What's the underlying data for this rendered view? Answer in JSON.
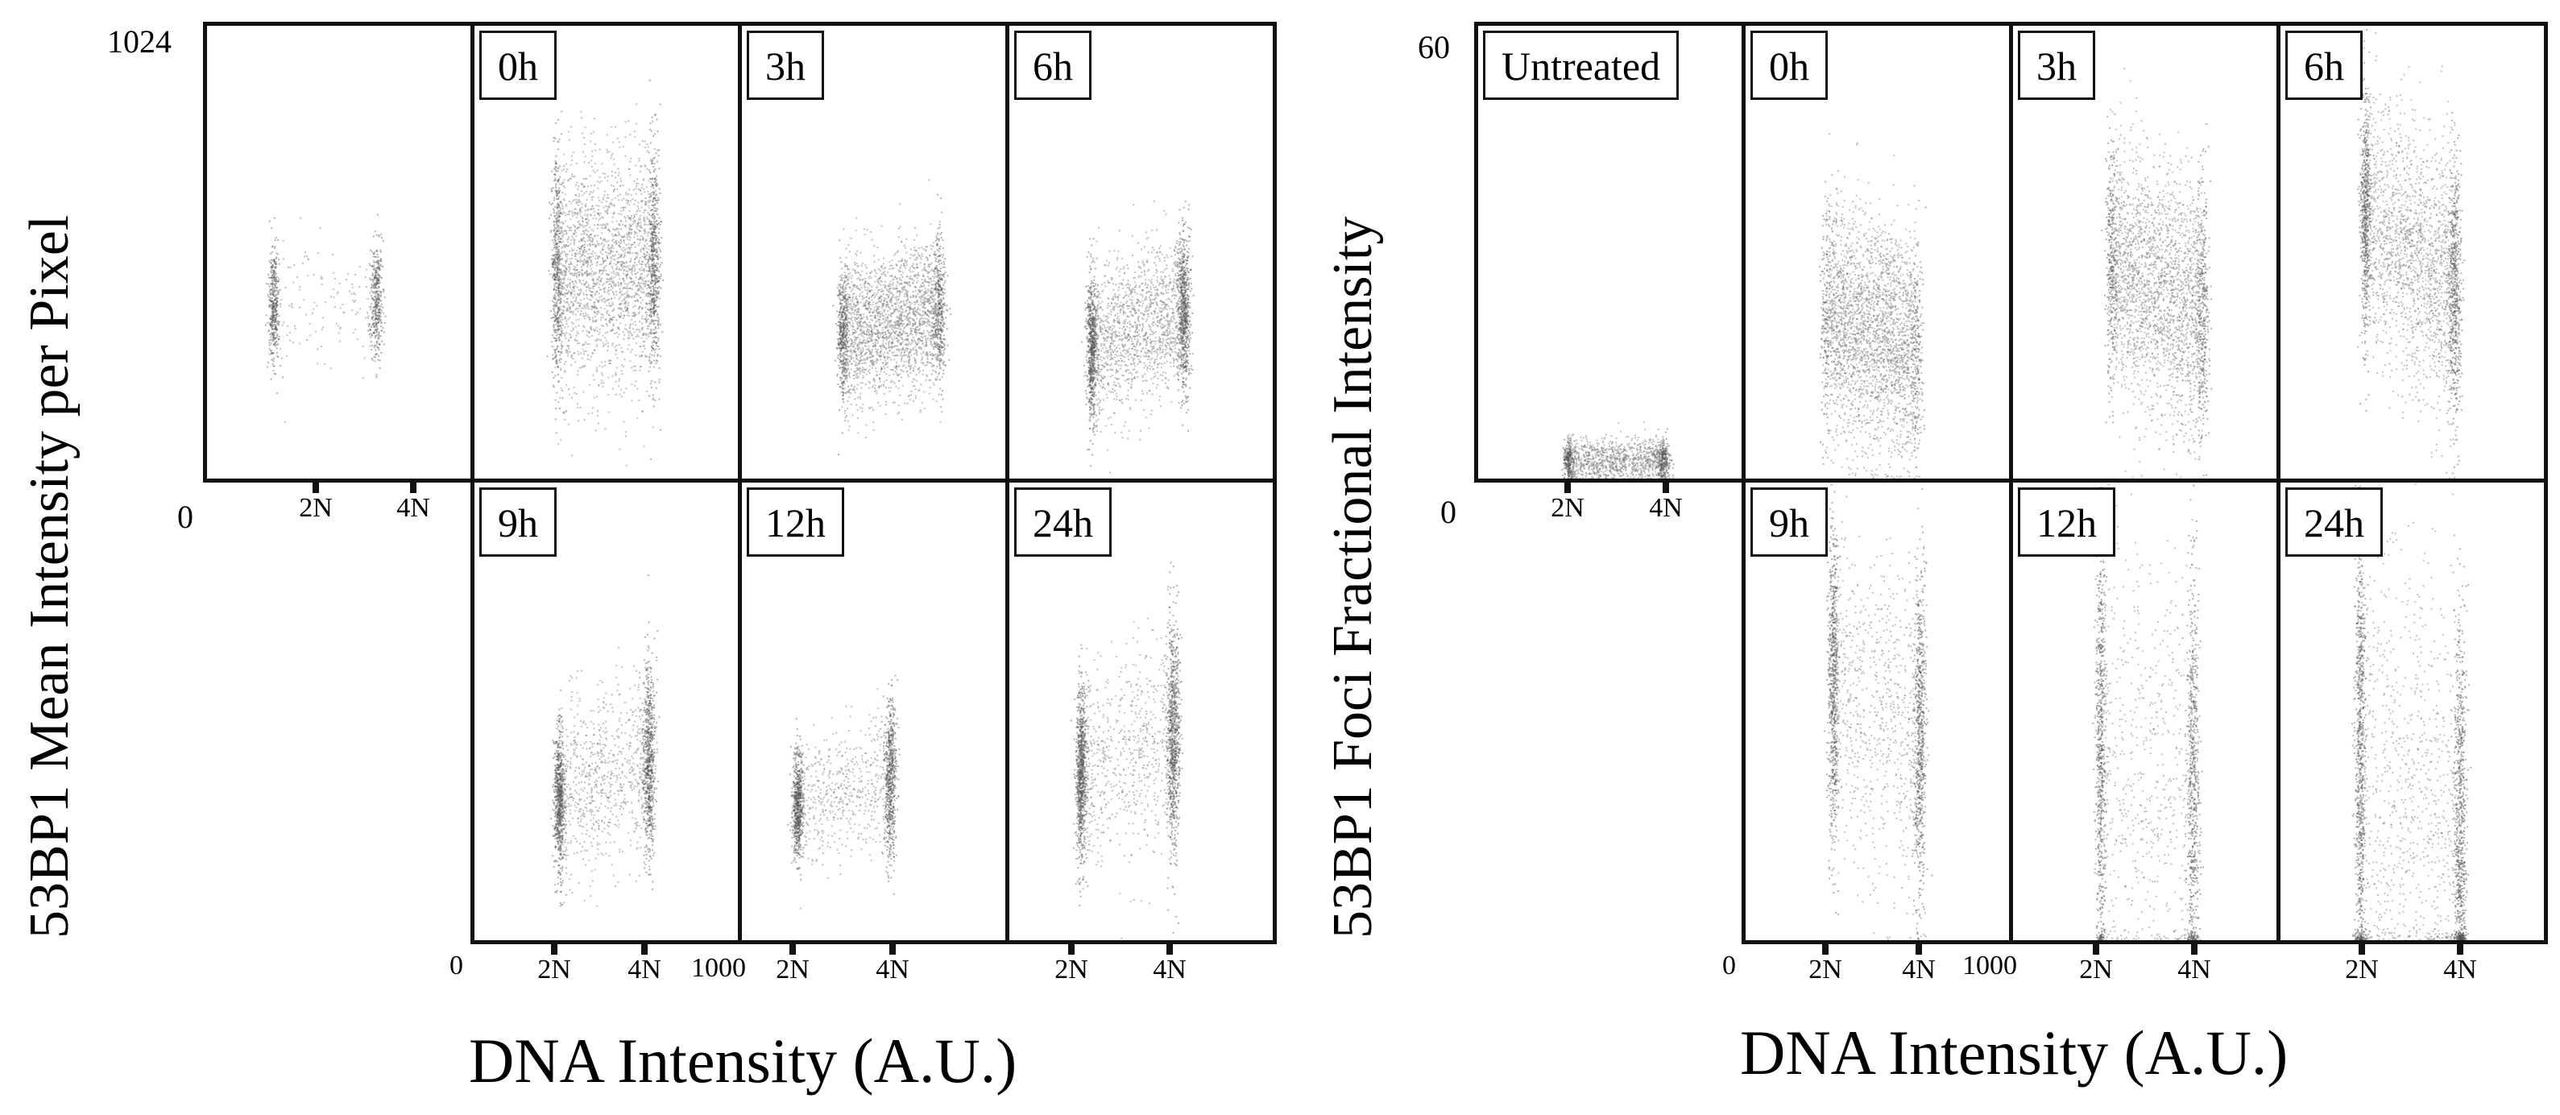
{
  "chart_data": [
    {
      "type": "scatter",
      "ylabel": "53BP1 Mean Intensity per Pixel",
      "xlabel": "DNA Intensity (A.U.)",
      "ylim": [
        0,
        1024
      ],
      "xlim": [
        0,
        1000
      ],
      "y_tick_labels": {
        "max": "1024",
        "min": "0"
      },
      "x_tick_labels": {
        "min": "0",
        "max": "1000",
        "ploidy_2n": "2N",
        "ploidy_4n": "4N"
      },
      "panels": [
        {
          "label": "",
          "g1": {
            "x": 250,
            "y": 390,
            "yspread": 65
          },
          "g2": {
            "x": 640,
            "y": 410,
            "yspread": 65
          },
          "s": 0.15,
          "n": 900
        },
        {
          "label": "0h",
          "g1": {
            "x": 310,
            "y": 470,
            "yspread": 130
          },
          "g2": {
            "x": 680,
            "y": 480,
            "yspread": 130
          },
          "s": 0.7,
          "n": 3200
        },
        {
          "label": "3h",
          "g1": {
            "x": 380,
            "y": 330,
            "yspread": 75
          },
          "g2": {
            "x": 750,
            "y": 380,
            "yspread": 85
          },
          "s": 0.75,
          "n": 3000
        },
        {
          "label": "6h",
          "g1": {
            "x": 310,
            "y": 300,
            "yspread": 80
          },
          "g2": {
            "x": 660,
            "y": 380,
            "yspread": 90
          },
          "s": 0.5,
          "n": 2800
        },
        {
          "label": "9h",
          "g1": {
            "x": 320,
            "y": 320,
            "yspread": 80
          },
          "g2": {
            "x": 660,
            "y": 400,
            "yspread": 110
          },
          "s": 0.35,
          "n": 2200
        },
        {
          "label": "12h",
          "g1": {
            "x": 210,
            "y": 300,
            "yspread": 60
          },
          "g2": {
            "x": 560,
            "y": 360,
            "yspread": 90
          },
          "s": 0.3,
          "n": 1800
        },
        {
          "label": "24h",
          "g1": {
            "x": 270,
            "y": 380,
            "yspread": 100
          },
          "g2": {
            "x": 620,
            "y": 460,
            "yspread": 130
          },
          "s": 0.3,
          "n": 2400
        }
      ]
    },
    {
      "type": "scatter",
      "ylabel": "53BP1 Foci Fractional Intensity",
      "xlabel": "DNA Intensity (A.U.)",
      "ylim": [
        0,
        60
      ],
      "xlim": [
        0,
        1000
      ],
      "y_tick_labels": {
        "max": "60",
        "min": "0"
      },
      "x_tick_labels": {
        "min": "0",
        "max": "1000",
        "ploidy_2n": "2N",
        "ploidy_4n": "4N"
      },
      "panels": [
        {
          "label": "Untreated",
          "g1": {
            "x": 340,
            "y": 2.5,
            "yspread": 1.5
          },
          "g2": {
            "x": 700,
            "y": 2.5,
            "yspread": 1.5
          },
          "s": 0.7,
          "n": 1500
        },
        {
          "label": "0h",
          "g1": {
            "x": 300,
            "y": 22,
            "yspread": 8
          },
          "g2": {
            "x": 650,
            "y": 17,
            "yspread": 7
          },
          "s": 0.9,
          "n": 3000
        },
        {
          "label": "3h",
          "g1": {
            "x": 370,
            "y": 28,
            "yspread": 8
          },
          "g2": {
            "x": 720,
            "y": 22,
            "yspread": 9
          },
          "s": 0.8,
          "n": 3000
        },
        {
          "label": "6h",
          "g1": {
            "x": 320,
            "y": 35,
            "yspread": 8
          },
          "g2": {
            "x": 660,
            "y": 25,
            "yspread": 9
          },
          "s": 0.6,
          "n": 3000
        },
        {
          "label": "9h",
          "g1": {
            "x": 330,
            "y": 33,
            "yspread": 10
          },
          "g2": {
            "x": 660,
            "y": 27,
            "yspread": 11
          },
          "s": 0.35,
          "n": 2200
        },
        {
          "label": "12h",
          "g1": {
            "x": 330,
            "y": 25,
            "yspread": 15
          },
          "g2": {
            "x": 680,
            "y": 20,
            "yspread": 15
          },
          "s": 0.3,
          "n": 2000
        },
        {
          "label": "24h",
          "g1": {
            "x": 300,
            "y": 25,
            "yspread": 18
          },
          "g2": {
            "x": 680,
            "y": 15,
            "yspread": 14
          },
          "s": 0.35,
          "n": 2600
        }
      ]
    }
  ]
}
